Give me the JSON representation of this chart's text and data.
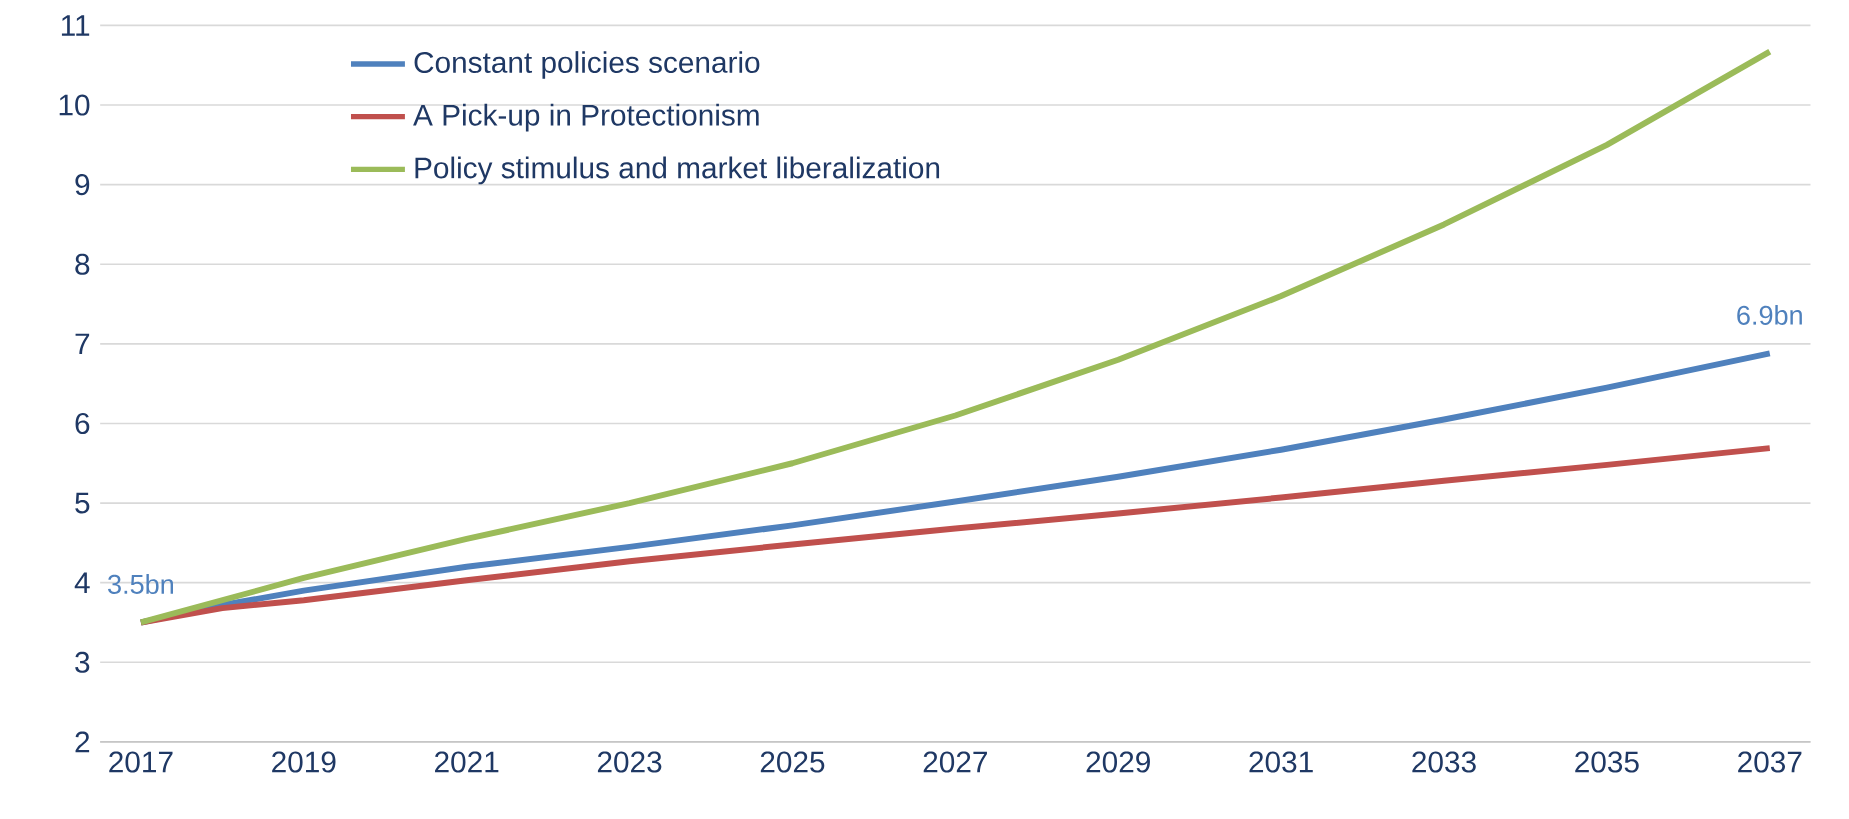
{
  "chart_data": {
    "type": "line",
    "x": [
      2017,
      2018,
      2019,
      2021,
      2023,
      2025,
      2027,
      2029,
      2031,
      2033,
      2035,
      2037
    ],
    "series": [
      {
        "name": "Constant policies scenario",
        "color": "#4f81bd",
        "values": [
          3.5,
          3.72,
          3.9,
          4.2,
          4.45,
          4.72,
          5.02,
          5.33,
          5.67,
          6.05,
          6.45,
          6.88
        ]
      },
      {
        "name": "A Pick-up in Protectionism",
        "color": "#c0504d",
        "values": [
          3.5,
          3.68,
          3.78,
          4.03,
          4.27,
          4.48,
          4.68,
          4.87,
          5.07,
          5.28,
          5.48,
          5.69
        ]
      },
      {
        "name": "Policy stimulus and market liberalization",
        "color": "#9bbb59",
        "values": [
          3.5,
          3.78,
          4.06,
          4.55,
          5.0,
          5.5,
          6.1,
          6.8,
          7.6,
          8.5,
          9.5,
          10.67
        ]
      }
    ],
    "annotations": [
      {
        "text": "3.5bn",
        "x": 2017,
        "y": 3.5
      },
      {
        "text": "6.9bn",
        "x": 2037,
        "y": 6.88
      }
    ],
    "xlim": [
      2016.5,
      2037.5
    ],
    "xticks": [
      2017,
      2019,
      2021,
      2023,
      2025,
      2027,
      2029,
      2031,
      2033,
      2035,
      2037
    ],
    "ylim": [
      2,
      11
    ],
    "yticks": [
      2,
      3,
      4,
      5,
      6,
      7,
      8,
      9,
      10,
      11
    ],
    "grid": "y",
    "legend": "top left",
    "marker": "none",
    "line_style": "solid"
  }
}
